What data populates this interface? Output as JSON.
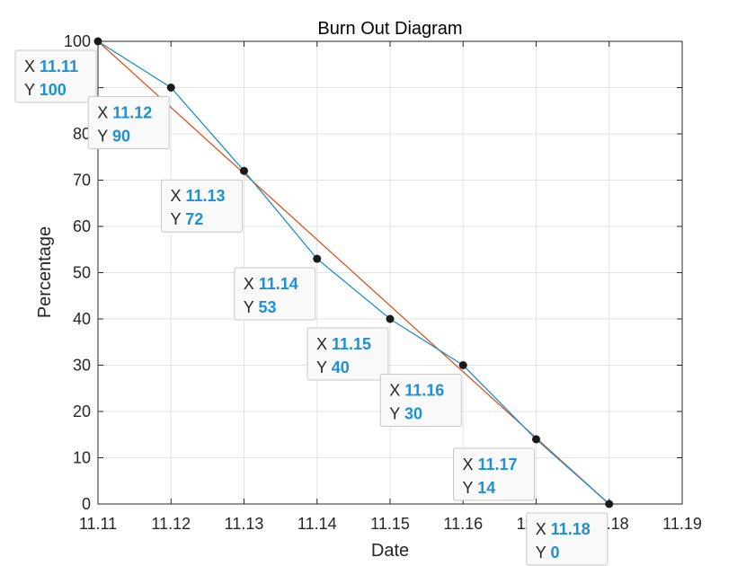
{
  "chart_data": {
    "type": "line",
    "title": "Burn Out Diagram",
    "xlabel": "Date",
    "ylabel": "Percentage",
    "xlim": [
      11.11,
      11.19
    ],
    "ylim": [
      0,
      100
    ],
    "x_ticks": [
      "11.11",
      "11.12",
      "11.13",
      "11.14",
      "11.15",
      "11.16",
      "11.17",
      "11.18",
      "11.19"
    ],
    "y_ticks": [
      "0",
      "10",
      "20",
      "30",
      "40",
      "50",
      "60",
      "70",
      "80",
      "90",
      "100"
    ],
    "grid": true,
    "series": [
      {
        "color": "#1f8fc8",
        "x": [
          11.11,
          11.12,
          11.13,
          11.14,
          11.15,
          11.16,
          11.17,
          11.18
        ],
        "y": [
          100,
          90,
          72,
          53,
          40,
          30,
          14,
          0
        ],
        "markers": true
      },
      {
        "color": "#d9541e",
        "x": [
          11.11,
          11.18
        ],
        "y": [
          100,
          0
        ],
        "markers": false
      }
    ],
    "datatips": [
      {
        "x_label": "11.11",
        "y_label": "100"
      },
      {
        "x_label": "11.12",
        "y_label": "90"
      },
      {
        "x_label": "11.13",
        "y_label": "72"
      },
      {
        "x_label": "11.14",
        "y_label": "53"
      },
      {
        "x_label": "11.15",
        "y_label": "40"
      },
      {
        "x_label": "11.16",
        "y_label": "30"
      },
      {
        "x_label": "11.17",
        "y_label": "14"
      },
      {
        "x_label": "11.18",
        "y_label": "0"
      }
    ],
    "datatip_prefix_x": "X",
    "datatip_prefix_y": "Y"
  }
}
